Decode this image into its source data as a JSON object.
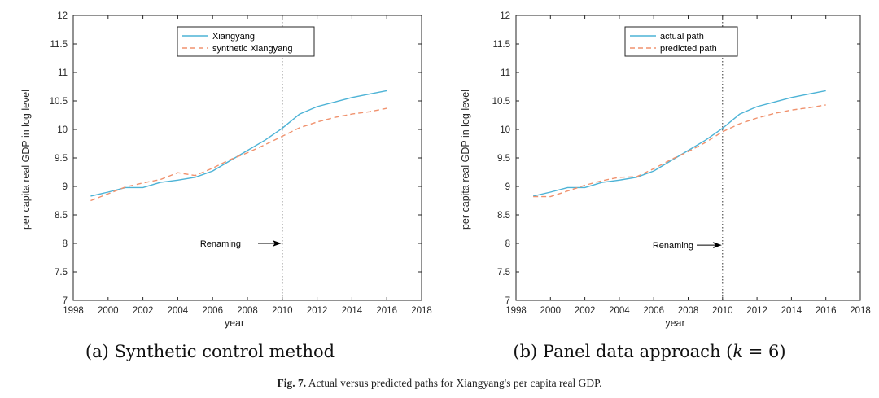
{
  "chart_data": [
    {
      "type": "line",
      "title": "",
      "xlabel": "year",
      "ylabel": "per capita real GDP in log level",
      "xlim": [
        1998,
        2018
      ],
      "ylim": [
        7,
        12
      ],
      "xticks": [
        1998,
        2000,
        2002,
        2004,
        2006,
        2008,
        2010,
        2012,
        2014,
        2016,
        2018
      ],
      "yticks": [
        7,
        7.5,
        8,
        8.5,
        9,
        9.5,
        10,
        10.5,
        11,
        11.5,
        12
      ],
      "x": [
        1999,
        2000,
        2001,
        2002,
        2003,
        2004,
        2005,
        2006,
        2007,
        2008,
        2009,
        2010,
        2011,
        2012,
        2013,
        2014,
        2015,
        2016
      ],
      "series": [
        {
          "name": "Xiangyang",
          "style": "solid",
          "color": "#4db3d6",
          "values": [
            8.83,
            8.9,
            8.98,
            8.98,
            9.07,
            9.11,
            9.16,
            9.27,
            9.45,
            9.63,
            9.81,
            10.02,
            10.27,
            10.4,
            10.48,
            10.56,
            10.62,
            10.68
          ]
        },
        {
          "name": "synthetic Xiangyang",
          "style": "dashed",
          "color": "#f0926e",
          "values": [
            8.75,
            8.87,
            8.99,
            9.06,
            9.12,
            9.24,
            9.19,
            9.32,
            9.47,
            9.59,
            9.73,
            9.88,
            10.03,
            10.13,
            10.21,
            10.27,
            10.31,
            10.37
          ]
        }
      ],
      "annotation": {
        "text": "Renaming",
        "at_x": 2010,
        "at_y": 8.0,
        "vline_x": 2010
      },
      "legend_position": "top-center",
      "caption": "(a) Synthetic control method"
    },
    {
      "type": "line",
      "title": "",
      "xlabel": "year",
      "ylabel": "per capita real GDP in log level",
      "xlim": [
        1998,
        2018
      ],
      "ylim": [
        7,
        12
      ],
      "xticks": [
        1998,
        2000,
        2002,
        2004,
        2006,
        2008,
        2010,
        2012,
        2014,
        2016,
        2018
      ],
      "yticks": [
        7,
        7.5,
        8,
        8.5,
        9,
        9.5,
        10,
        10.5,
        11,
        11.5,
        12
      ],
      "x": [
        1999,
        2000,
        2001,
        2002,
        2003,
        2004,
        2005,
        2006,
        2007,
        2008,
        2009,
        2010,
        2011,
        2012,
        2013,
        2014,
        2015,
        2016
      ],
      "series": [
        {
          "name": "actual path",
          "style": "solid",
          "color": "#4db3d6",
          "values": [
            8.83,
            8.9,
            8.98,
            8.98,
            9.07,
            9.11,
            9.16,
            9.27,
            9.45,
            9.63,
            9.81,
            10.02,
            10.27,
            10.4,
            10.48,
            10.56,
            10.62,
            10.68
          ]
        },
        {
          "name": "predicted path",
          "style": "dashed",
          "color": "#f0926e",
          "values": [
            8.82,
            8.82,
            8.92,
            9.02,
            9.1,
            9.16,
            9.17,
            9.31,
            9.47,
            9.61,
            9.77,
            9.96,
            10.1,
            10.2,
            10.28,
            10.34,
            10.38,
            10.43
          ]
        }
      ],
      "annotation": {
        "text": "Renaming",
        "at_x": 2010,
        "at_y": 7.97,
        "vline_x": 2010
      },
      "legend_position": "top-center",
      "caption": "(b) Panel data approach (k = 6)"
    }
  ],
  "figure": {
    "caption_label": "Fig. 7.",
    "caption_text": "Actual versus predicted paths for Xiangyang's per capita real GDP."
  }
}
